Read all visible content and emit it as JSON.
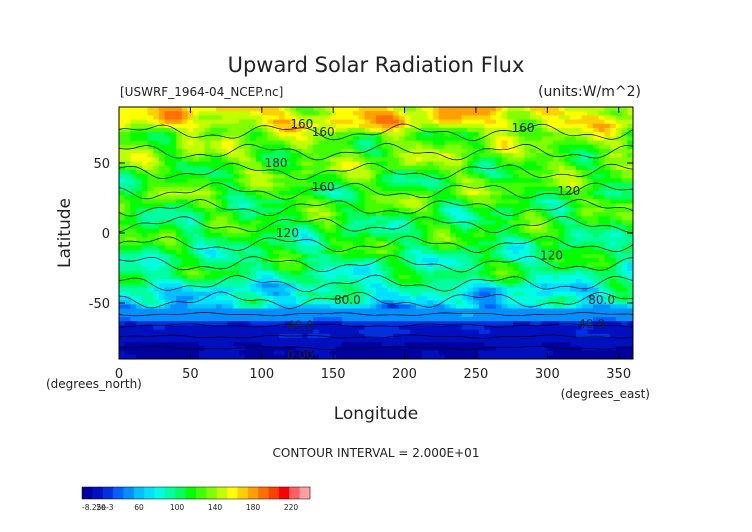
{
  "chart_data": {
    "type": "heatmap",
    "title": "Upward Solar Radiation Flux",
    "file_label": "[USWRF_1964-04_NCEP.nc]",
    "units_label": "(units:W/m^2)",
    "xlabel": "Longitude",
    "ylabel": "Latitude",
    "x_unit_label": "(degrees_east)",
    "y_unit_label": "(degrees_north)",
    "xlim": [
      0,
      360
    ],
    "ylim": [
      -90,
      90
    ],
    "x_ticks": [
      0,
      50,
      100,
      150,
      200,
      250,
      300,
      350
    ],
    "y_ticks": [
      -50,
      0,
      50
    ],
    "contour_interval_text": "CONTOUR INTERVAL = 2.000E+01",
    "contour_labels": [
      {
        "text": "160",
        "lon": 128,
        "lat": 78
      },
      {
        "text": "160",
        "lon": 143,
        "lat": 72
      },
      {
        "text": "160",
        "lon": 283,
        "lat": 75
      },
      {
        "text": "180",
        "lon": 110,
        "lat": 50
      },
      {
        "text": "160",
        "lon": 143,
        "lat": 33
      },
      {
        "text": "120",
        "lon": 315,
        "lat": 30
      },
      {
        "text": "120",
        "lon": 118,
        "lat": 0
      },
      {
        "text": "120",
        "lon": 303,
        "lat": -16
      },
      {
        "text": "80.0",
        "lon": 160,
        "lat": -48
      },
      {
        "text": "80.0",
        "lon": 338,
        "lat": -48
      },
      {
        "text": "40.0",
        "lon": 127,
        "lat": -66
      },
      {
        "text": "40.0",
        "lon": 331,
        "lat": -65
      },
      {
        "text": "0.00",
        "lon": 127,
        "lat": -87
      }
    ],
    "colorbar": {
      "tick_labels": [
        "-8.25e-3",
        "20",
        "60",
        "100",
        "140",
        "180",
        "220"
      ],
      "tick_values": [
        0,
        20,
        60,
        100,
        140,
        180,
        220
      ],
      "range": [
        0,
        240
      ],
      "colors": [
        "#0000a0",
        "#0010c0",
        "#0030e0",
        "#0060ff",
        "#0090ff",
        "#00c0ff",
        "#00e0ff",
        "#00ffe0",
        "#00ffa0",
        "#00ff60",
        "#00ff00",
        "#40ff00",
        "#80ff00",
        "#c0ff00",
        "#ffff00",
        "#ffd000",
        "#ffa000",
        "#ff7000",
        "#ff4000",
        "#ff0000",
        "#ff6060",
        "#ffa0a0"
      ]
    },
    "field_description_bands": [
      {
        "lat_from": 90,
        "lat_to": 70,
        "value": 160
      },
      {
        "lat_from": 70,
        "lat_to": 40,
        "value": 130
      },
      {
        "lat_from": 40,
        "lat_to": 10,
        "value": 120
      },
      {
        "lat_from": 10,
        "lat_to": -20,
        "value": 110
      },
      {
        "lat_from": -20,
        "lat_to": -40,
        "value": 100
      },
      {
        "lat_from": -40,
        "lat_to": -55,
        "value": 80
      },
      {
        "lat_from": -55,
        "lat_to": -65,
        "value": 50
      },
      {
        "lat_from": -65,
        "lat_to": -80,
        "value": 20
      },
      {
        "lat_from": -80,
        "lat_to": -90,
        "value": 10
      }
    ]
  }
}
